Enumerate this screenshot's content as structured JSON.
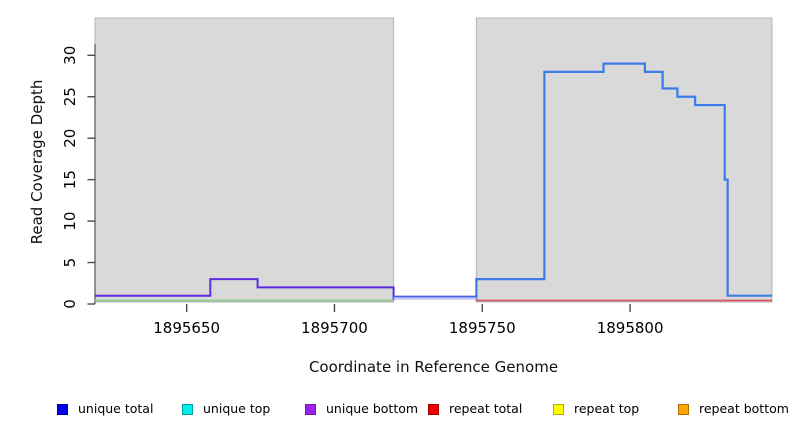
{
  "figure": {
    "xlabel": "Coordinate in Reference Genome",
    "ylabel": "Read Coverage Depth"
  },
  "chart_data": {
    "type": "line",
    "subtype": "step-function read coverage plot",
    "title": "",
    "xlabel": "Coordinate in Reference Genome",
    "ylabel": "Read Coverage Depth",
    "xlim": [
      1895619,
      1895848
    ],
    "ylim": [
      0,
      34.5
    ],
    "x_ticks": [
      1895650,
      1895700,
      1895750,
      1895800
    ],
    "y_ticks": [
      0,
      5,
      10,
      15,
      20,
      25,
      30
    ],
    "grid": false,
    "plot_background": "#ffffff",
    "covered_region_color": "#d9d9d9",
    "covered_region_border": "#b5b5b5",
    "covered_regions": [
      [
        1895619,
        1895720
      ],
      [
        1895748,
        1895848
      ]
    ],
    "uncovered_gap": [
      1895720,
      1895748
    ],
    "series": [
      {
        "name": "unique coverage left of gap",
        "color": "#5b2ce0",
        "width": 2,
        "steps": [
          [
            1895619,
            1895658,
            1
          ],
          [
            1895658,
            1895674,
            3
          ],
          [
            1895674,
            1895720,
            2
          ],
          [
            1895720,
            1895720,
            0
          ]
        ]
      },
      {
        "name": "unique total right of gap",
        "color": "#3d7be8",
        "width": 2.2,
        "steps": [
          [
            1895748,
            1895748,
            0
          ],
          [
            1895748,
            1895771,
            3
          ],
          [
            1895771,
            1895791,
            28
          ],
          [
            1895791,
            1895805,
            29
          ],
          [
            1895805,
            1895811,
            28
          ],
          [
            1895811,
            1895816,
            26
          ],
          [
            1895816,
            1895822,
            25
          ],
          [
            1895822,
            1895832,
            24
          ],
          [
            1895832,
            1895833,
            15
          ],
          [
            1895833,
            1895848,
            1
          ]
        ]
      },
      {
        "name": "zero baseline left",
        "color": "#90cb90",
        "width": 1.8,
        "steps": [
          [
            1895619,
            1895720,
            0
          ]
        ]
      },
      {
        "name": "zero baseline in gap",
        "color": "#3f62e0",
        "halo": "#c9c4f4",
        "width": 1.8,
        "steps": [
          [
            1895720,
            1895748,
            0
          ]
        ]
      },
      {
        "name": "zero baseline right",
        "color": "#dd5468",
        "width": 1.8,
        "steps": [
          [
            1895748,
            1895848,
            0
          ]
        ]
      }
    ],
    "legend_position": "bottom",
    "legend": [
      {
        "label": "unique total",
        "color": "#0000ee",
        "border": "#0000a0"
      },
      {
        "label": "unique top",
        "color": "#00eeee",
        "border": "#00a0a0"
      },
      {
        "label": "unique bottom",
        "color": "#a020f0",
        "border": "#7018b0"
      },
      {
        "label": "repeat total",
        "color": "#ee0000",
        "border": "#a00000"
      },
      {
        "label": "repeat top",
        "color": "#ffff00",
        "border": "#b0b000"
      },
      {
        "label": "repeat bottom",
        "color": "#ffa500",
        "border": "#b07000"
      }
    ]
  }
}
